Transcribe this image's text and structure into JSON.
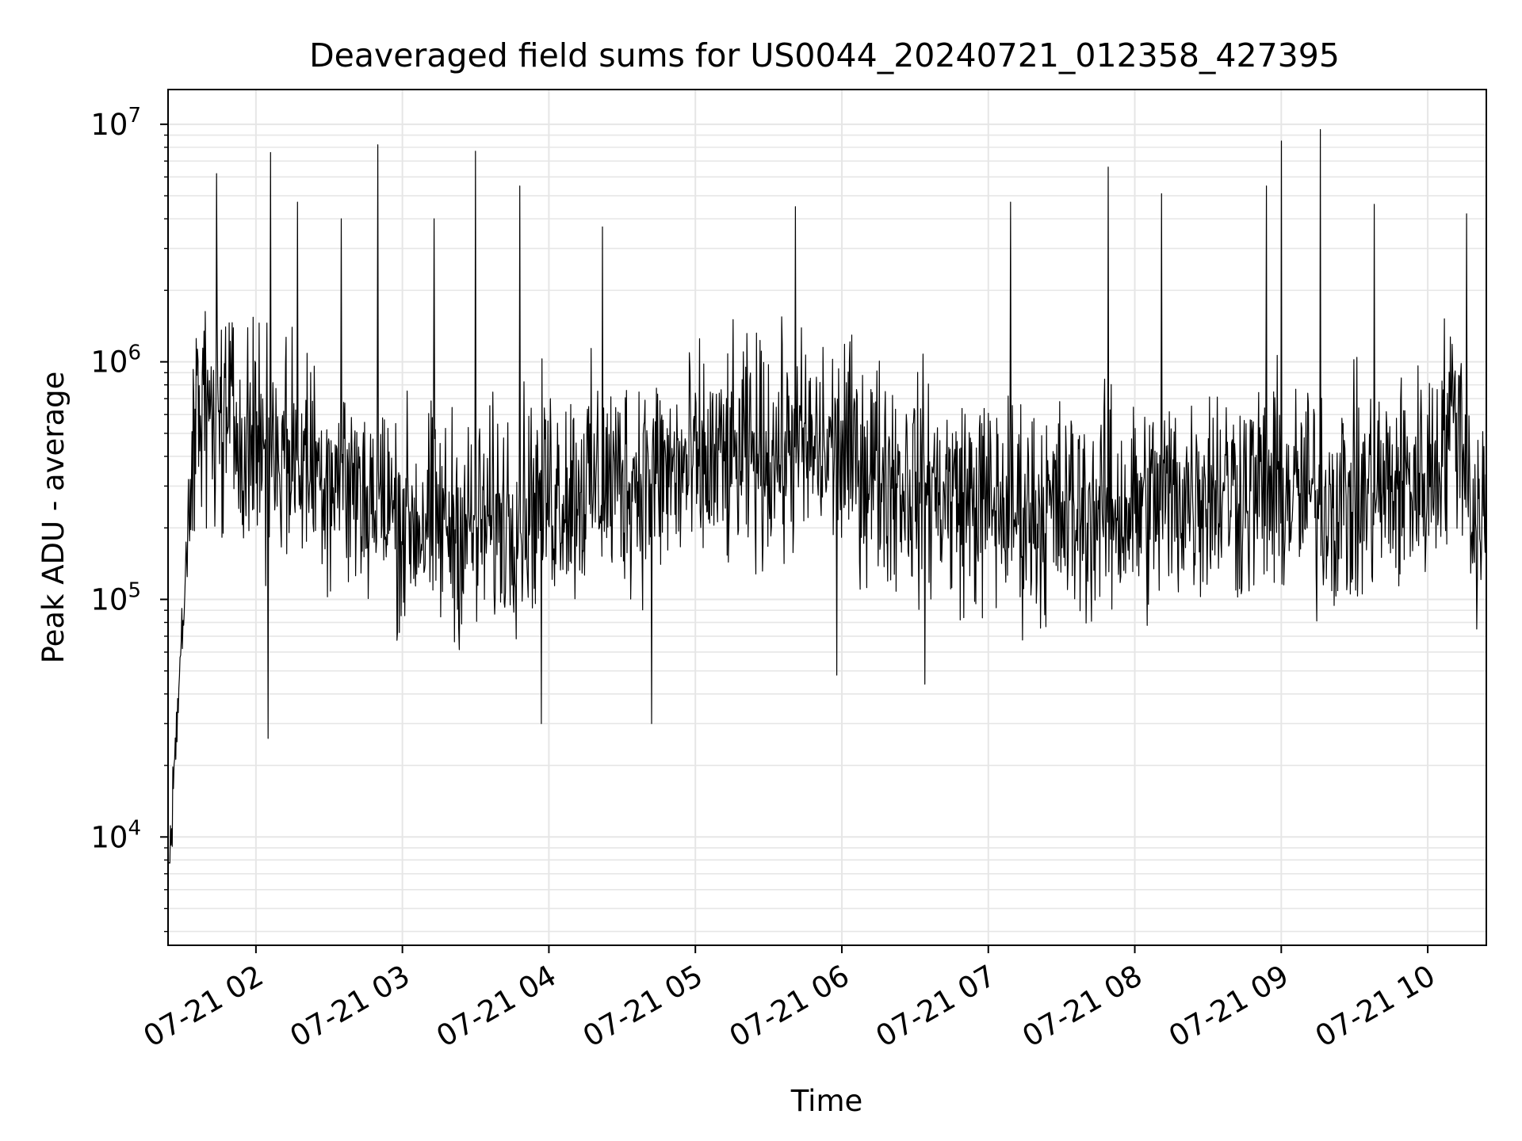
{
  "chart_data": {
    "type": "line",
    "title": "Deaveraged field sums for US0044_20240721_012358_427395",
    "xlabel": "Time",
    "ylabel": "Peak ADU - average",
    "x_start": "2024-07-21T01:24",
    "x_end": "2024-07-21T10:24",
    "xlim": [
      "2024-07-21T01:24",
      "2024-07-21T10:24"
    ],
    "y_scale": "log",
    "ylim": [
      3500,
      14000000
    ],
    "grid": true,
    "legend": "none",
    "line_color": "#000000",
    "x_ticks": [
      {
        "t": "2024-07-21T02:00",
        "label": "07-21 02"
      },
      {
        "t": "2024-07-21T03:00",
        "label": "07-21 03"
      },
      {
        "t": "2024-07-21T04:00",
        "label": "07-21 04"
      },
      {
        "t": "2024-07-21T05:00",
        "label": "07-21 05"
      },
      {
        "t": "2024-07-21T06:00",
        "label": "07-21 06"
      },
      {
        "t": "2024-07-21T07:00",
        "label": "07-21 07"
      },
      {
        "t": "2024-07-21T08:00",
        "label": "07-21 08"
      },
      {
        "t": "2024-07-21T09:00",
        "label": "07-21 09"
      },
      {
        "t": "2024-07-21T10:00",
        "label": "07-21 10"
      }
    ],
    "y_ticks": [
      {
        "value": 10000,
        "base": "10",
        "exp": "4"
      },
      {
        "value": 100000,
        "base": "10",
        "exp": "5"
      },
      {
        "value": 1000000,
        "base": "10",
        "exp": "6"
      },
      {
        "value": 10000000,
        "base": "10",
        "exp": "7"
      }
    ],
    "baseline_profile": [
      {
        "t": "2024-07-21T01:24",
        "value": 7000
      },
      {
        "t": "2024-07-21T01:30",
        "value": 80000
      },
      {
        "t": "2024-07-21T01:36",
        "value": 600000
      },
      {
        "t": "2024-07-21T01:48",
        "value": 550000
      },
      {
        "t": "2024-07-21T02:30",
        "value": 350000
      },
      {
        "t": "2024-07-21T03:00",
        "value": 220000
      },
      {
        "t": "2024-07-21T03:30",
        "value": 200000
      },
      {
        "t": "2024-07-21T04:00",
        "value": 280000
      },
      {
        "t": "2024-07-21T04:30",
        "value": 320000
      },
      {
        "t": "2024-07-21T05:00",
        "value": 350000
      },
      {
        "t": "2024-07-21T05:30",
        "value": 420000
      },
      {
        "t": "2024-07-21T06:00",
        "value": 420000
      },
      {
        "t": "2024-07-21T06:30",
        "value": 300000
      },
      {
        "t": "2024-07-21T07:00",
        "value": 250000
      },
      {
        "t": "2024-07-21T07:30",
        "value": 230000
      },
      {
        "t": "2024-07-21T08:00",
        "value": 240000
      },
      {
        "t": "2024-07-21T08:30",
        "value": 300000
      },
      {
        "t": "2024-07-21T09:00",
        "value": 280000
      },
      {
        "t": "2024-07-21T09:30",
        "value": 260000
      },
      {
        "t": "2024-07-21T10:00",
        "value": 330000
      },
      {
        "t": "2024-07-21T10:12",
        "value": 650000
      },
      {
        "t": "2024-07-21T10:18",
        "value": 250000
      },
      {
        "t": "2024-07-21T10:24",
        "value": 250000
      }
    ],
    "spikes_high": [
      {
        "t": "2024-07-21T01:44",
        "value": 6200000
      },
      {
        "t": "2024-07-21T02:06",
        "value": 7600000
      },
      {
        "t": "2024-07-21T02:17",
        "value": 4700000
      },
      {
        "t": "2024-07-21T02:35",
        "value": 4000000
      },
      {
        "t": "2024-07-21T02:50",
        "value": 8200000
      },
      {
        "t": "2024-07-21T03:13",
        "value": 4000000
      },
      {
        "t": "2024-07-21T03:30",
        "value": 7700000
      },
      {
        "t": "2024-07-21T03:48",
        "value": 5500000
      },
      {
        "t": "2024-07-21T04:22",
        "value": 3700000
      },
      {
        "t": "2024-07-21T05:41",
        "value": 4500000
      },
      {
        "t": "2024-07-21T07:09",
        "value": 4700000
      },
      {
        "t": "2024-07-21T07:49",
        "value": 6600000
      },
      {
        "t": "2024-07-21T08:11",
        "value": 5100000
      },
      {
        "t": "2024-07-21T08:54",
        "value": 5500000
      },
      {
        "t": "2024-07-21T09:00",
        "value": 8500000
      },
      {
        "t": "2024-07-21T09:16",
        "value": 9500000
      },
      {
        "t": "2024-07-21T09:38",
        "value": 4600000
      },
      {
        "t": "2024-07-21T10:16",
        "value": 4200000
      }
    ],
    "spikes_low": [
      {
        "t": "2024-07-21T02:05",
        "value": 26000
      },
      {
        "t": "2024-07-21T03:57",
        "value": 30000
      },
      {
        "t": "2024-07-21T04:42",
        "value": 30000
      },
      {
        "t": "2024-07-21T05:58",
        "value": 48000
      },
      {
        "t": "2024-07-21T06:34",
        "value": 44000
      },
      {
        "t": "2024-07-21T10:20",
        "value": 75000
      }
    ]
  }
}
